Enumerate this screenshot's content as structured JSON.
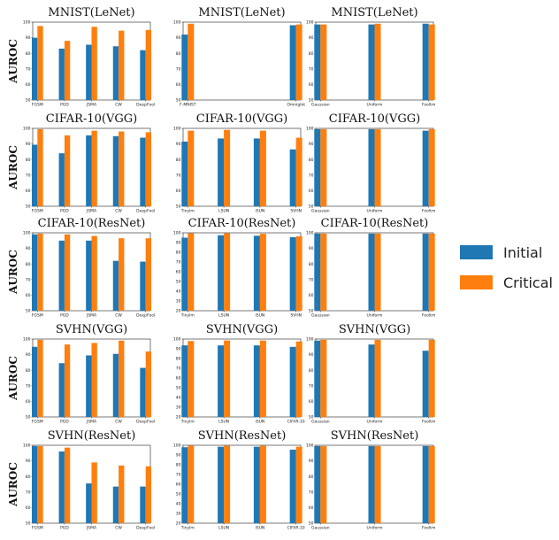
{
  "ylabel": "AUROC",
  "legend": [
    {
      "name": "Initial",
      "color": "#1f77b4"
    },
    {
      "name": "Critical",
      "color": "#ff7f0e"
    }
  ],
  "chart_data": [
    {
      "type": "bar",
      "title": "MNIST(LeNet)",
      "categories": [
        "FGSM",
        "PGD",
        "JSMA",
        "CW",
        "DeepFool"
      ],
      "ylim": [
        50,
        100
      ],
      "yticks": [
        50,
        60,
        70,
        80,
        90,
        100
      ],
      "series": [
        {
          "name": "Initial",
          "values": [
            90,
            83,
            85.5,
            84.5,
            82
          ]
        },
        {
          "name": "Critical",
          "values": [
            97.5,
            88,
            97,
            94.5,
            95
          ]
        }
      ]
    },
    {
      "type": "bar",
      "title": "MNIST(LeNet)",
      "categories": [
        "F-MNIST",
        "Omniglot"
      ],
      "ylim": [
        50,
        100
      ],
      "yticks": [
        50,
        60,
        70,
        80,
        90,
        100
      ],
      "series": [
        {
          "name": "Initial",
          "values": [
            92,
            98
          ]
        },
        {
          "name": "Critical",
          "values": [
            99,
            98.5
          ]
        }
      ]
    },
    {
      "type": "bar",
      "title": "MNIST(LeNet)",
      "categories": [
        "Gaussian",
        "Uniform",
        "Fooltm"
      ],
      "ylim": [
        50,
        100
      ],
      "yticks": [
        50,
        60,
        70,
        80,
        90,
        100
      ],
      "series": [
        {
          "name": "Initial",
          "values": [
            98.5,
            98.5,
            99
          ]
        },
        {
          "name": "Critical",
          "values": [
            98.5,
            99,
            98.5
          ]
        }
      ]
    },
    {
      "type": "bar",
      "title": "CIFAR-10(VGG)",
      "categories": [
        "FGSM",
        "PGD",
        "JSMA",
        "CW",
        "DeepFool"
      ],
      "ylim": [
        50,
        100
      ],
      "yticks": [
        50,
        60,
        70,
        80,
        90,
        100
      ],
      "series": [
        {
          "name": "Initial",
          "values": [
            89.5,
            84,
            95.5,
            95,
            94
          ]
        },
        {
          "name": "Critical",
          "values": [
            99.5,
            95.5,
            98.5,
            98,
            97.5
          ]
        }
      ]
    },
    {
      "type": "bar",
      "title": "CIFAR-10(VGG)",
      "categories": [
        "Tinylm",
        "LSUN",
        "iSUN",
        "SVHN"
      ],
      "ylim": [
        50,
        100
      ],
      "yticks": [
        50,
        60,
        70,
        80,
        90,
        100
      ],
      "series": [
        {
          "name": "Initial",
          "values": [
            91.5,
            93.5,
            93.5,
            86.5
          ]
        },
        {
          "name": "Critical",
          "values": [
            98.5,
            99,
            98.5,
            94
          ]
        }
      ]
    },
    {
      "type": "bar",
      "title": "CIFAR-10(VGG)",
      "categories": [
        "Gaussian",
        "Uniform",
        "Fooltm"
      ],
      "ylim": [
        50,
        100
      ],
      "yticks": [
        50,
        60,
        70,
        80,
        90,
        100
      ],
      "series": [
        {
          "name": "Initial",
          "values": [
            99.5,
            99.5,
            98.5
          ]
        },
        {
          "name": "Critical",
          "values": [
            99.5,
            99.5,
            99.5
          ]
        }
      ]
    },
    {
      "type": "bar",
      "title": "CIFAR-10(ResNet)",
      "categories": [
        "FGSM",
        "PGD",
        "JSMA",
        "CW",
        "DeepFool"
      ],
      "ylim": [
        50,
        100
      ],
      "yticks": [
        50,
        60,
        70,
        80,
        90,
        100
      ],
      "series": [
        {
          "name": "Initial",
          "values": [
            99,
            95,
            95,
            82,
            81.5
          ]
        },
        {
          "name": "Critical",
          "values": [
            99.5,
            99,
            98,
            96.5,
            96.5
          ]
        }
      ]
    },
    {
      "type": "bar",
      "title": "CIFAR-10(ResNet)",
      "categories": [
        "Tinylm",
        "LSUN",
        "iSUN",
        "SVHN"
      ],
      "ylim": [
        20,
        100
      ],
      "yticks": [
        20,
        30,
        40,
        50,
        60,
        70,
        80,
        90,
        100
      ],
      "series": [
        {
          "name": "Initial",
          "values": [
            95,
            97.5,
            97,
            95.5
          ]
        },
        {
          "name": "Critical",
          "values": [
            99.5,
            99.5,
            99,
            96.5
          ]
        }
      ]
    },
    {
      "type": "bar",
      "title": "CIFAR-10(ResNet)",
      "categories": [
        "Gaussian",
        "Uniform",
        "Fooltm"
      ],
      "ylim": [
        50,
        100
      ],
      "yticks": [
        50,
        60,
        70,
        80,
        90,
        100
      ],
      "series": [
        {
          "name": "Initial",
          "values": [
            99.5,
            99.5,
            99.5
          ]
        },
        {
          "name": "Critical",
          "values": [
            99.5,
            99.5,
            99.5
          ]
        }
      ]
    },
    {
      "type": "bar",
      "title": "SVHN(VGG)",
      "categories": [
        "FGSM",
        "PGD",
        "JSMA",
        "CW",
        "DeepFool"
      ],
      "ylim": [
        50,
        100
      ],
      "yticks": [
        50,
        60,
        70,
        80,
        90,
        100
      ],
      "series": [
        {
          "name": "Initial",
          "values": [
            95,
            84.5,
            89.5,
            90.5,
            81.5
          ]
        },
        {
          "name": "Critical",
          "values": [
            99.5,
            96.5,
            97.5,
            99,
            92
          ]
        }
      ]
    },
    {
      "type": "bar",
      "title": "SVHN(VGG)",
      "categories": [
        "Tinylm",
        "LSUN",
        "iSUN",
        "CIFAR-10"
      ],
      "ylim": [
        20,
        100
      ],
      "yticks": [
        20,
        30,
        40,
        50,
        60,
        70,
        80,
        90,
        100
      ],
      "series": [
        {
          "name": "Initial",
          "values": [
            93.5,
            93.5,
            93.5,
            92
          ]
        },
        {
          "name": "Critical",
          "values": [
            98,
            98.5,
            98.5,
            97.5
          ]
        }
      ]
    },
    {
      "type": "bar",
      "title": "SVHN(VGG)",
      "categories": [
        "Gaussian",
        "Uniform",
        "Fooltm"
      ],
      "ylim": [
        50,
        100
      ],
      "yticks": [
        50,
        60,
        70,
        80,
        90,
        100
      ],
      "series": [
        {
          "name": "Initial",
          "values": [
            99,
            96.5,
            92.5
          ]
        },
        {
          "name": "Critical",
          "values": [
            99.5,
            99.5,
            99.5
          ]
        }
      ]
    },
    {
      "type": "bar",
      "title": "SVHN(ResNet)",
      "categories": [
        "FGSM",
        "PGD",
        "JSMA",
        "CW",
        "DeepFool"
      ],
      "ylim": [
        50,
        100
      ],
      "yticks": [
        50,
        60,
        70,
        80,
        90,
        100
      ],
      "series": [
        {
          "name": "Initial",
          "values": [
            99.5,
            96,
            75.5,
            73.5,
            73.5
          ]
        },
        {
          "name": "Critical",
          "values": [
            99.5,
            98.5,
            89,
            87,
            86.5
          ]
        }
      ]
    },
    {
      "type": "bar",
      "title": "SVHN(ResNet)",
      "categories": [
        "Tinylm",
        "LSUN",
        "iSUN",
        "CIFAR-10"
      ],
      "ylim": [
        20,
        100
      ],
      "yticks": [
        20,
        30,
        40,
        50,
        60,
        70,
        80,
        90,
        100
      ],
      "series": [
        {
          "name": "Initial",
          "values": [
            98,
            98.5,
            98.5,
            95.5
          ]
        },
        {
          "name": "Critical",
          "values": [
            99.5,
            99.5,
            99.5,
            98.5
          ]
        }
      ]
    },
    {
      "type": "bar",
      "title": "SVHN(ResNet)",
      "categories": [
        "Gaussian",
        "Uniform",
        "Fooltm"
      ],
      "ylim": [
        50,
        100
      ],
      "yticks": [
        50,
        60,
        70,
        80,
        90,
        100
      ],
      "series": [
        {
          "name": "Initial",
          "values": [
            99.5,
            99.5,
            99.5
          ]
        },
        {
          "name": "Critical",
          "values": [
            99.5,
            99.5,
            99.5
          ]
        }
      ]
    }
  ]
}
